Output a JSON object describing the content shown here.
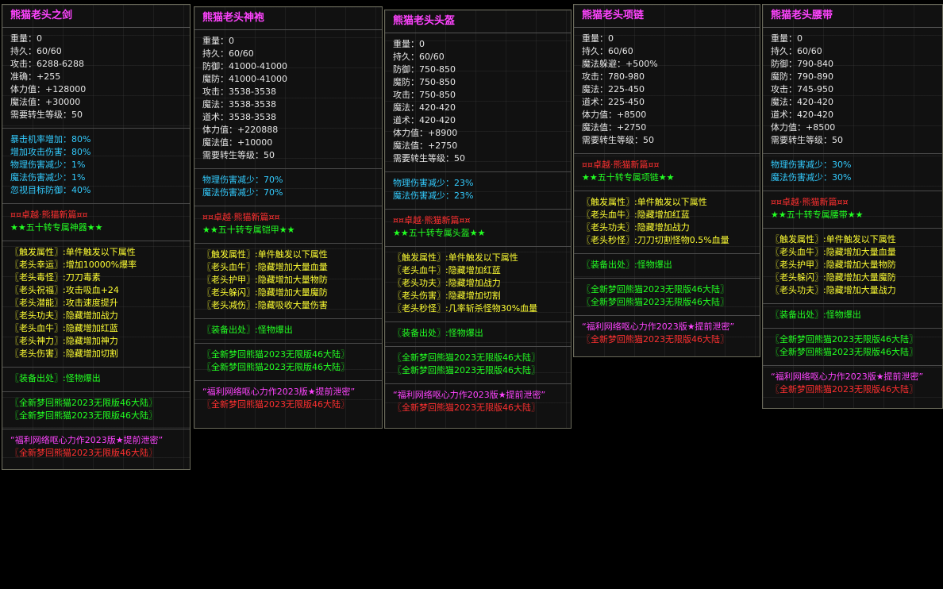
{
  "panels": [
    {
      "title": "熊猫老头之剑",
      "sections": [
        {
          "lines": [
            {
              "text": "重量：0",
              "color": "#e6e6e6"
            },
            {
              "text": "持久：60/60",
              "color": "#e6e6e6"
            },
            {
              "text": "攻击：6288-6288",
              "color": "#e6e6e6"
            },
            {
              "text": "准确：+255",
              "color": "#e6e6e6"
            },
            {
              "text": "体力值：+128000",
              "color": "#e6e6e6"
            },
            {
              "text": "魔法值：+30000",
              "color": "#e6e6e6"
            },
            {
              "text": "需要转生等级：50",
              "color": "#e6e6e6"
            }
          ]
        },
        {
          "lines": [
            {
              "text": "暴击机率增加：80%",
              "color": "#33ccff"
            },
            {
              "text": "增加攻击伤害：80%",
              "color": "#33ccff"
            },
            {
              "text": "物理伤害减少：1%",
              "color": "#33ccff"
            },
            {
              "text": "魔法伤害减少：1%",
              "color": "#33ccff"
            },
            {
              "text": "忽视目标防御：40%",
              "color": "#33ccff"
            }
          ]
        },
        {
          "lines": [
            {
              "text": "¤¤卓越·熊猫新篇¤¤",
              "color": "#ff3030"
            },
            {
              "text": "★★五十转专属神器★★",
              "color": "#22ff22"
            }
          ]
        },
        {
          "lines": [
            {
              "text": "〖触发属性〗:单件触发以下属性",
              "color": "#ffff33"
            },
            {
              "text": "〖老头幸运〗:增加10000%爆率",
              "color": "#ffff33"
            },
            {
              "text": "〖老头毒怪〗:刀刀毒素",
              "color": "#ffff33"
            },
            {
              "text": "〖老头祝福〗:攻击吸血+24",
              "color": "#ffff33"
            },
            {
              "text": "〖老头潜能〗:攻击速度提升",
              "color": "#ffff33"
            },
            {
              "text": "〖老头功夫〗:隐藏增加战力",
              "color": "#ffff33"
            },
            {
              "text": "〖老头血牛〗:隐藏增加红蓝",
              "color": "#ffff33"
            },
            {
              "text": "〖老头神力〗:隐藏增加神力",
              "color": "#ffff33"
            },
            {
              "text": "〖老头伤害〗:隐藏增加切割",
              "color": "#ffff33"
            }
          ]
        },
        {
          "lines": [
            {
              "text": "〖装备出处〗:怪物爆出",
              "color": "#22ff22"
            }
          ]
        },
        {
          "lines": [
            {
              "text": "〖全新梦回熊猫2023无限版46大陆〗",
              "color": "#22ff22"
            },
            {
              "text": "〖全新梦回熊猫2023无限版46大陆〗",
              "color": "#22ff22"
            }
          ]
        },
        {
          "lines": [
            {
              "text": "“福利网络呕心力作2023版★提前泄密”",
              "color": "#ff44ff"
            },
            {
              "text": "〖全新梦回熊猫2023无限版46大陆〗",
              "color": "#ff3030"
            }
          ]
        }
      ]
    },
    {
      "title": "熊猫老头神袍",
      "sections": [
        {
          "lines": [
            {
              "text": "重量：0",
              "color": "#e6e6e6"
            },
            {
              "text": "持久：60/60",
              "color": "#e6e6e6"
            },
            {
              "text": "防御：41000-41000",
              "color": "#e6e6e6"
            },
            {
              "text": "魔防：41000-41000",
              "color": "#e6e6e6"
            },
            {
              "text": "攻击：3538-3538",
              "color": "#e6e6e6"
            },
            {
              "text": "魔法：3538-3538",
              "color": "#e6e6e6"
            },
            {
              "text": "道术：3538-3538",
              "color": "#e6e6e6"
            },
            {
              "text": "体力值：+220888",
              "color": "#e6e6e6"
            },
            {
              "text": "魔法值：+10000",
              "color": "#e6e6e6"
            },
            {
              "text": "需要转生等级：50",
              "color": "#e6e6e6"
            }
          ]
        },
        {
          "lines": [
            {
              "text": "物理伤害减少：70%",
              "color": "#33ccff"
            },
            {
              "text": "魔法伤害减少：70%",
              "color": "#33ccff"
            }
          ]
        },
        {
          "lines": [
            {
              "text": "¤¤卓越·熊猫新篇¤¤",
              "color": "#ff3030"
            },
            {
              "text": "★★五十转专属铠甲★★",
              "color": "#22ff22"
            }
          ]
        },
        {
          "lines": [
            {
              "text": "〖触发属性〗:单件触发以下属性",
              "color": "#ffff33"
            },
            {
              "text": "〖老头血牛〗:隐藏增加大量血量",
              "color": "#ffff33"
            },
            {
              "text": "〖老头护甲〗:隐藏增加大量物防",
              "color": "#ffff33"
            },
            {
              "text": "〖老头躲闪〗:隐藏增加大量魔防",
              "color": "#ffff33"
            },
            {
              "text": "〖老头减伤〗:隐藏吸收大量伤害",
              "color": "#ffff33"
            }
          ]
        },
        {
          "lines": [
            {
              "text": "〖装备出处〗:怪物爆出",
              "color": "#22ff22"
            }
          ]
        },
        {
          "lines": [
            {
              "text": "〖全新梦回熊猫2023无限版46大陆〗",
              "color": "#22ff22"
            },
            {
              "text": "〖全新梦回熊猫2023无限版46大陆〗",
              "color": "#22ff22"
            }
          ]
        },
        {
          "lines": [
            {
              "text": "“福利网络呕心力作2023版★提前泄密”",
              "color": "#ff44ff"
            },
            {
              "text": "〖全新梦回熊猫2023无限版46大陆〗",
              "color": "#ff3030"
            }
          ]
        }
      ]
    },
    {
      "title": "熊猫老头头盔",
      "sections": [
        {
          "lines": [
            {
              "text": "重量：0",
              "color": "#e6e6e6"
            },
            {
              "text": "持久：60/60",
              "color": "#e6e6e6"
            },
            {
              "text": "防御：750-850",
              "color": "#e6e6e6"
            },
            {
              "text": "魔防：750-850",
              "color": "#e6e6e6"
            },
            {
              "text": "攻击：750-850",
              "color": "#e6e6e6"
            },
            {
              "text": "魔法：420-420",
              "color": "#e6e6e6"
            },
            {
              "text": "道术：420-420",
              "color": "#e6e6e6"
            },
            {
              "text": "体力值：+8900",
              "color": "#e6e6e6"
            },
            {
              "text": "魔法值：+2750",
              "color": "#e6e6e6"
            },
            {
              "text": "需要转生等级：50",
              "color": "#e6e6e6"
            }
          ]
        },
        {
          "lines": [
            {
              "text": "物理伤害减少：23%",
              "color": "#33ccff"
            },
            {
              "text": "魔法伤害减少：23%",
              "color": "#33ccff"
            }
          ]
        },
        {
          "lines": [
            {
              "text": "¤¤卓越·熊猫新篇¤¤",
              "color": "#ff3030"
            },
            {
              "text": "★★五十转专属头盔★★",
              "color": "#22ff22"
            }
          ]
        },
        {
          "lines": [
            {
              "text": "〖触发属性〗:单件触发以下属性",
              "color": "#ffff33"
            },
            {
              "text": "〖老头血牛〗:隐藏增加红蓝",
              "color": "#ffff33"
            },
            {
              "text": "〖老头功夫〗:隐藏增加战力",
              "color": "#ffff33"
            },
            {
              "text": "〖老头伤害〗:隐藏增加切割",
              "color": "#ffff33"
            },
            {
              "text": "〖老头秒怪〗:几率斩杀怪物30%血量",
              "color": "#ffff33"
            }
          ]
        },
        {
          "lines": [
            {
              "text": "〖装备出处〗:怪物爆出",
              "color": "#22ff22"
            }
          ]
        },
        {
          "lines": [
            {
              "text": "〖全新梦回熊猫2023无限版46大陆〗",
              "color": "#22ff22"
            },
            {
              "text": "〖全新梦回熊猫2023无限版46大陆〗",
              "color": "#22ff22"
            }
          ]
        },
        {
          "lines": [
            {
              "text": "“福利网络呕心力作2023版★提前泄密”",
              "color": "#ff44ff"
            },
            {
              "text": "〖全新梦回熊猫2023无限版46大陆〗",
              "color": "#ff3030"
            }
          ]
        }
      ]
    },
    {
      "title": "熊猫老头项链",
      "sections": [
        {
          "lines": [
            {
              "text": "重量：0",
              "color": "#e6e6e6"
            },
            {
              "text": "持久：60/60",
              "color": "#e6e6e6"
            },
            {
              "text": "魔法躲避：+500%",
              "color": "#e6e6e6"
            },
            {
              "text": "攻击：780-980",
              "color": "#e6e6e6"
            },
            {
              "text": "魔法：225-450",
              "color": "#e6e6e6"
            },
            {
              "text": "道术：225-450",
              "color": "#e6e6e6"
            },
            {
              "text": "体力值：+8500",
              "color": "#e6e6e6"
            },
            {
              "text": "魔法值：+2750",
              "color": "#e6e6e6"
            },
            {
              "text": "需要转生等级：50",
              "color": "#e6e6e6"
            }
          ]
        },
        {
          "lines": [
            {
              "text": "¤¤卓越·熊猫新篇¤¤",
              "color": "#ff3030"
            },
            {
              "text": "★★五十转专属项链★★",
              "color": "#22ff22"
            }
          ]
        },
        {
          "lines": [
            {
              "text": "〖触发属性〗:单件触发以下属性",
              "color": "#ffff33"
            },
            {
              "text": "〖老头血牛〗:隐藏增加红蓝",
              "color": "#ffff33"
            },
            {
              "text": "〖老头功夫〗:隐藏增加战力",
              "color": "#ffff33"
            },
            {
              "text": "〖老头秒怪〗:刀刀切割怪物0.5%血量",
              "color": "#ffff33"
            }
          ]
        },
        {
          "lines": [
            {
              "text": "〖装备出处〗:怪物爆出",
              "color": "#22ff22"
            }
          ]
        },
        {
          "lines": [
            {
              "text": "〖全新梦回熊猫2023无限版46大陆〗",
              "color": "#22ff22"
            },
            {
              "text": "〖全新梦回熊猫2023无限版46大陆〗",
              "color": "#22ff22"
            }
          ]
        },
        {
          "lines": [
            {
              "text": "“福利网络呕心力作2023版★提前泄密”",
              "color": "#ff44ff"
            },
            {
              "text": "〖全新梦回熊猫2023无限版46大陆〗",
              "color": "#ff3030"
            }
          ]
        }
      ]
    },
    {
      "title": "熊猫老头腰带",
      "sections": [
        {
          "lines": [
            {
              "text": "重量：0",
              "color": "#e6e6e6"
            },
            {
              "text": "持久：60/60",
              "color": "#e6e6e6"
            },
            {
              "text": "防御：790-840",
              "color": "#e6e6e6"
            },
            {
              "text": "魔防：790-890",
              "color": "#e6e6e6"
            },
            {
              "text": "攻击：745-950",
              "color": "#e6e6e6"
            },
            {
              "text": "魔法：420-420",
              "color": "#e6e6e6"
            },
            {
              "text": "道术：420-420",
              "color": "#e6e6e6"
            },
            {
              "text": "体力值：+8500",
              "color": "#e6e6e6"
            },
            {
              "text": "需要转生等级：50",
              "color": "#e6e6e6"
            }
          ]
        },
        {
          "lines": [
            {
              "text": "物理伤害减少：30%",
              "color": "#33ccff"
            },
            {
              "text": "魔法伤害减少：30%",
              "color": "#33ccff"
            }
          ]
        },
        {
          "lines": [
            {
              "text": "¤¤卓越·熊猫新篇¤¤",
              "color": "#ff3030"
            },
            {
              "text": "★★五十转专属腰带★★",
              "color": "#22ff22"
            }
          ]
        },
        {
          "lines": [
            {
              "text": "〖触发属性〗:单件触发以下属性",
              "color": "#ffff33"
            },
            {
              "text": "〖老头血牛〗:隐藏增加大量血量",
              "color": "#ffff33"
            },
            {
              "text": "〖老头护甲〗:隐藏增加大量物防",
              "color": "#ffff33"
            },
            {
              "text": "〖老头躲闪〗:隐藏增加大量魔防",
              "color": "#ffff33"
            },
            {
              "text": "〖老头功夫〗:隐藏增加大量战力",
              "color": "#ffff33"
            }
          ]
        },
        {
          "lines": [
            {
              "text": "〖装备出处〗:怪物爆出",
              "color": "#22ff22"
            }
          ]
        },
        {
          "lines": [
            {
              "text": "〖全新梦回熊猫2023无限版46大陆〗",
              "color": "#22ff22"
            },
            {
              "text": "〖全新梦回熊猫2023无限版46大陆〗",
              "color": "#22ff22"
            }
          ]
        },
        {
          "lines": [
            {
              "text": "“福利网络呕心力作2023版★提前泄密”",
              "color": "#ff44ff"
            },
            {
              "text": "〖全新梦回熊猫2023无限版46大陆〗",
              "color": "#ff3030"
            }
          ]
        }
      ]
    }
  ]
}
